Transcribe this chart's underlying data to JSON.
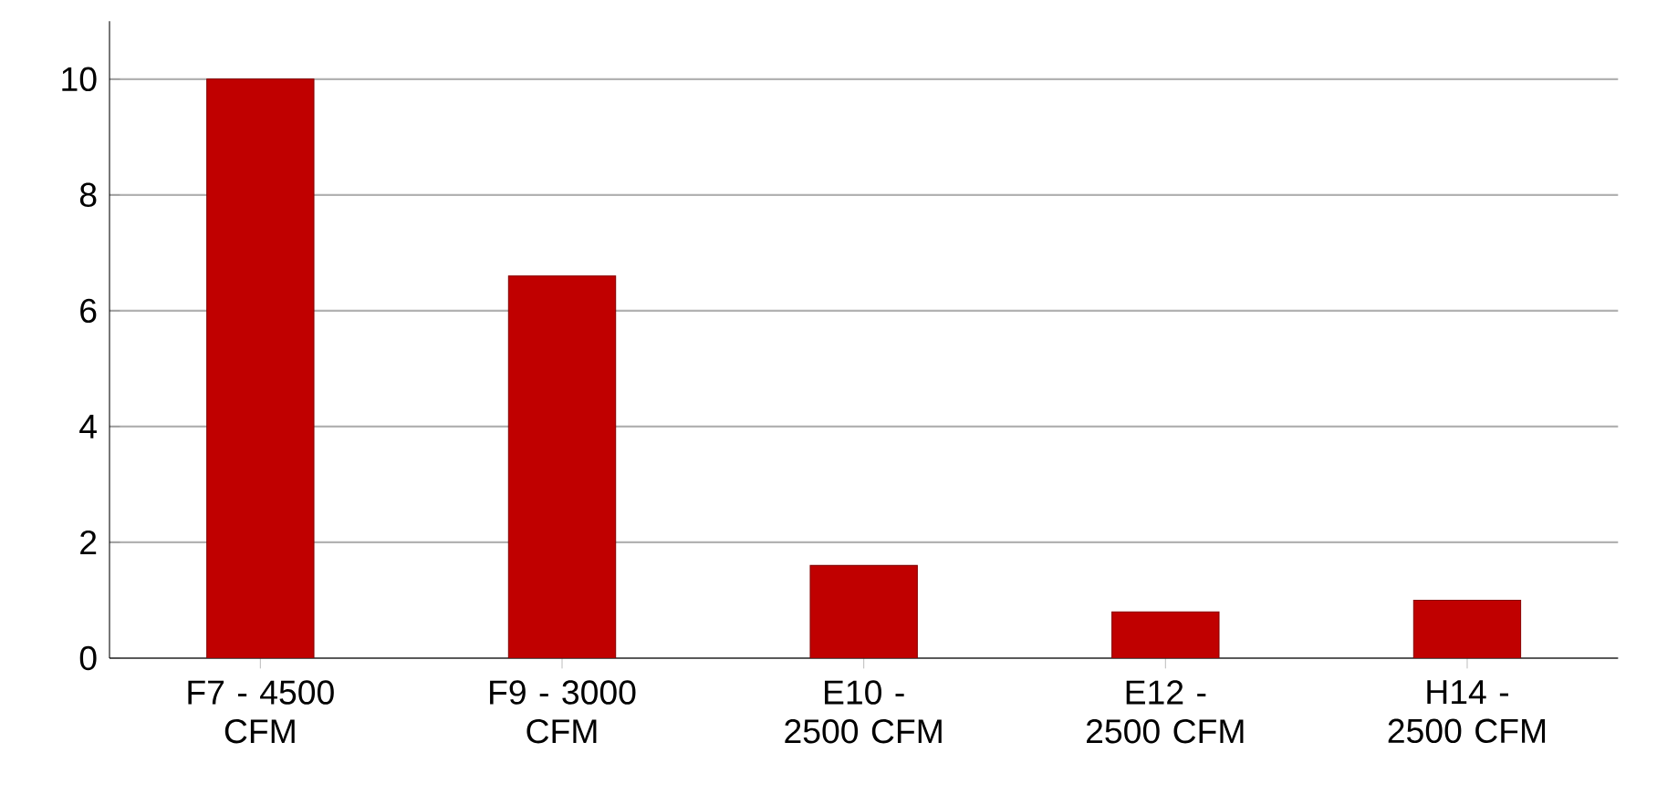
{
  "chart_data": {
    "type": "bar",
    "categories": [
      "F7 - 4500 CFM",
      "F9 - 3000 CFM",
      "E10 - 2500 CFM",
      "E12 - 2500 CFM",
      "H14 - 2500 CFM"
    ],
    "values": [
      10,
      6.6,
      1.6,
      0.8,
      1.0
    ],
    "color": "#c00000",
    "ylim": [
      0,
      11
    ],
    "yticks": [
      0,
      2,
      4,
      6,
      8,
      10
    ],
    "grid": "y"
  }
}
